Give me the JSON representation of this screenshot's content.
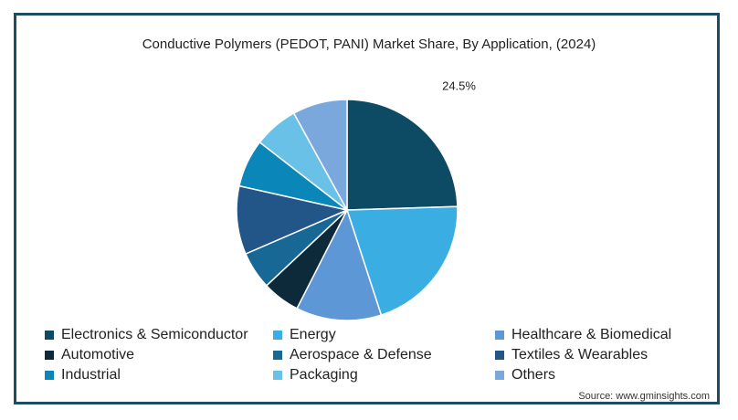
{
  "chart_data": {
    "type": "pie",
    "title": "Conductive Polymers (PEDOT, PANI) Market Share, By Application, (2024)",
    "slices": [
      {
        "name": "Electronics & Semiconductor",
        "value": 24.5,
        "color": "#0d4a64",
        "label": "24.5%"
      },
      {
        "name": "Energy",
        "value": 20.5,
        "color": "#3aaee3",
        "label": ""
      },
      {
        "name": "Healthcare & Biomedical",
        "value": 12.5,
        "color": "#5d97d6",
        "label": ""
      },
      {
        "name": "Automotive",
        "value": 5.5,
        "color": "#0d2a3a",
        "label": ""
      },
      {
        "name": "Aerospace & Defense",
        "value": 5.5,
        "color": "#176895",
        "label": ""
      },
      {
        "name": "Textiles & Wearables",
        "value": 10.0,
        "color": "#225688",
        "label": ""
      },
      {
        "name": "Industrial",
        "value": 7.0,
        "color": "#0a87b8",
        "label": ""
      },
      {
        "name": "Packaging",
        "value": 6.5,
        "color": "#6ac1e7",
        "label": ""
      },
      {
        "name": "Others",
        "value": 8.0,
        "color": "#7aa8dd",
        "label": ""
      }
    ],
    "legend_position": "bottom"
  },
  "source": "Source: www.gminsights.com"
}
